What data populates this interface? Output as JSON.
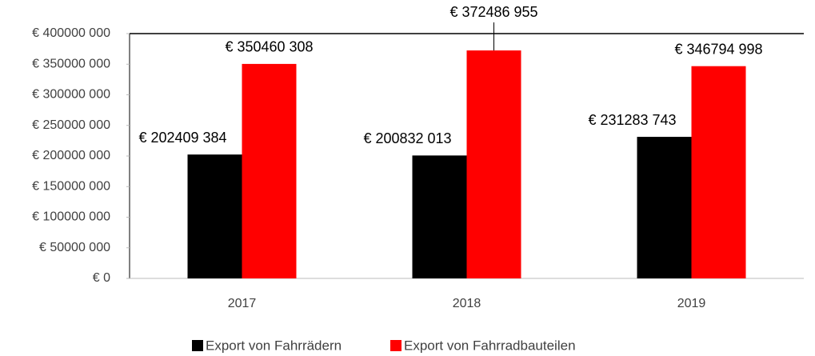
{
  "chart_data": {
    "type": "bar",
    "categories": [
      "2017",
      "2018",
      "2019"
    ],
    "series": [
      {
        "name": "Export von Fahrrädern",
        "color": "#000000",
        "values": [
          202409384,
          200832013,
          231283743
        ],
        "value_labels": [
          "€ 202409 384",
          "€ 200832 013",
          "€ 231283 743"
        ]
      },
      {
        "name": "Export von Fahrradbauteilen",
        "color": "#ff0000",
        "values": [
          350460308,
          372486955,
          346794998
        ],
        "value_labels": [
          "€ 350460 308",
          "€ 372486 955",
          "€ 346794 998"
        ]
      }
    ],
    "ylim": [
      0,
      400000000
    ],
    "yticks": [
      {
        "value": 0,
        "label": "€ 0"
      },
      {
        "value": 50000000,
        "label": "€ 50000 000"
      },
      {
        "value": 100000000,
        "label": "€ 100000 000"
      },
      {
        "value": 150000000,
        "label": "€ 150000 000"
      },
      {
        "value": 200000000,
        "label": "€ 200000 000"
      },
      {
        "value": 250000000,
        "label": "€ 250000 000"
      },
      {
        "value": 300000000,
        "label": "€ 300000 000"
      },
      {
        "value": 350000000,
        "label": "€ 350000 000"
      },
      {
        "value": 400000000,
        "label": "€ 400000 000"
      }
    ],
    "grid": false,
    "legend": "bottom"
  }
}
